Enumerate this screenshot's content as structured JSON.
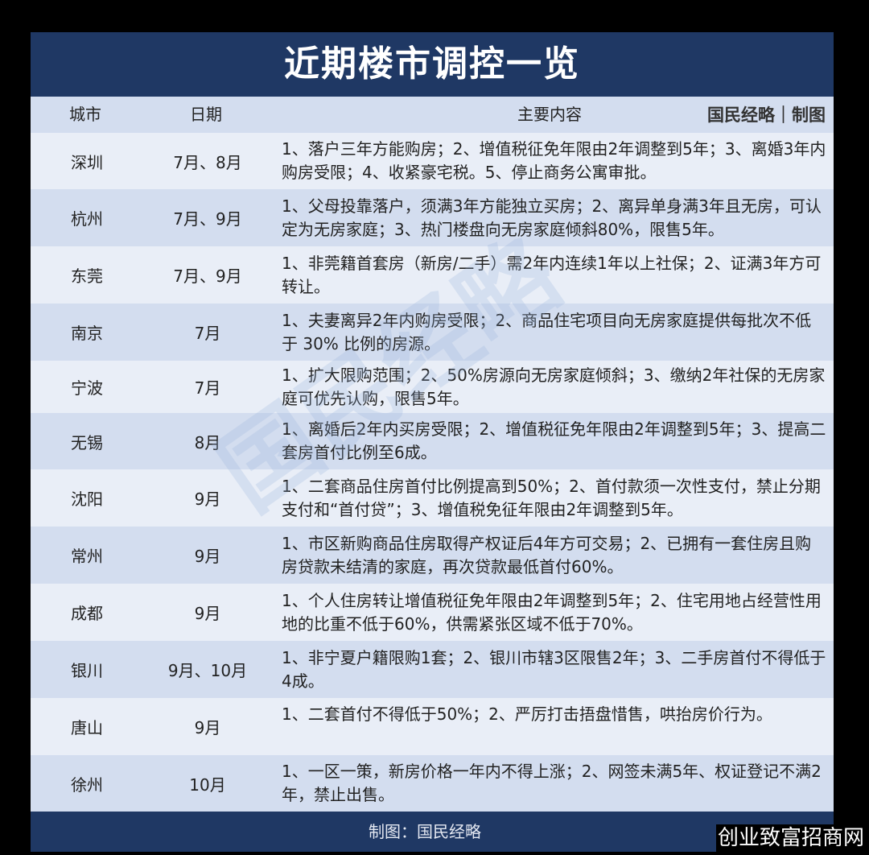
{
  "title": "近期楼市调控一览",
  "header": {
    "city": "城市",
    "date": "日期",
    "content": "主要内容",
    "credit": "国民经略｜制图"
  },
  "rows": [
    {
      "city": "深圳",
      "date": "7月、8月",
      "content": "1、落户三年方能购房；2、增值税征免年限由2年调整到5年；3、离婚3年内购房受限；4、收紧豪宅税。5、停止商务公寓审批。"
    },
    {
      "city": "杭州",
      "date": "7月、9月",
      "content": "1、父母投靠落户，须满3年方能独立买房；2、离异单身满3年且无房，可认定为无房家庭；3、热门楼盘向无房家庭倾斜80%，限售5年。"
    },
    {
      "city": "东莞",
      "date": "7月、9月",
      "content": "1、非莞籍首套房（新房/二手）需2年内连续1年以上社保；2、证满3年方可转让。"
    },
    {
      "city": "南京",
      "date": "7月",
      "content": "1、夫妻离异2年内购房受限；2、商品住宅项目向无房家庭提供每批次不低于 30% 比例的房源。"
    },
    {
      "city": "宁波",
      "date": "7月",
      "content": "1、扩大限购范围；2、50%房源向无房家庭倾斜；3、缴纳2年社保的无房家庭可优先认购，限售5年。"
    },
    {
      "city": "无锡",
      "date": "8月",
      "content": "1、离婚后2年内买房受限；2、增值税征免年限由2年调整到5年；3、提高二套房首付比例至6成。"
    },
    {
      "city": "沈阳",
      "date": "9月",
      "content": "1、二套商品住房首付比例提高到50%；2、首付款须一次性支付，禁止分期支付和“首付贷”；3、增值税免征年限由2年调整到5年。"
    },
    {
      "city": "常州",
      "date": "9月",
      "content": "1、市区新购商品住房取得产权证后4年方可交易；2、已拥有一套住房且购房贷款未结清的家庭，再次贷款最低首付60%。"
    },
    {
      "city": "成都",
      "date": "9月",
      "content": "1、个人住房转让增值税征免年限由2年调整到5年；2、住宅用地占经营性用地的比重不低于60%，供需紧张区域不低于70%。"
    },
    {
      "city": "银川",
      "date": "9月、10月",
      "content": "1、非宁夏户籍限购1套；2、银川市辖3区限售2年；3、二手房首付不得低于4成。"
    },
    {
      "city": "唐山",
      "date": "9月",
      "content": "1、二套首付不得低于50%；2、严厉打击捂盘惜售，哄抬房价行为。"
    },
    {
      "city": "徐州",
      "date": "10月",
      "content": "1、一区一策，新房价格一年内不得上涨；2、网签未满5年、权证登记不满2年，禁止出售。"
    }
  ],
  "footer": "制图：国民经略",
  "background_watermark": "国民经略",
  "corner_watermark": "创业致富招商网",
  "colors": {
    "navy": "#1f3864",
    "row_light": "#e9eef7",
    "row_dark": "#d3ddef"
  }
}
